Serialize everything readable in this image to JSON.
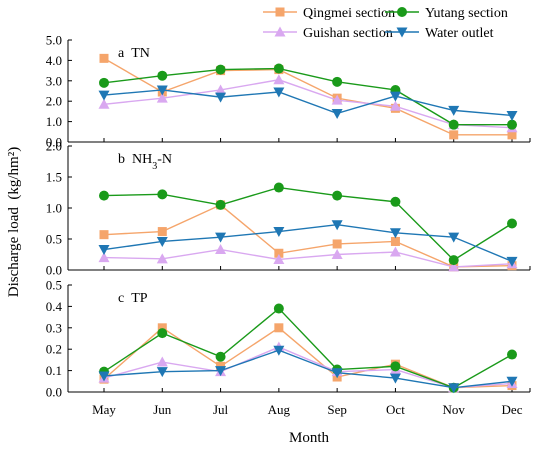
{
  "chart_data": {
    "type": "line",
    "categories": [
      "May",
      "Jun",
      "Jul",
      "Aug",
      "Sep",
      "Oct",
      "Nov",
      "Dec"
    ],
    "xlabel": "Month",
    "ylabel": "Discharge load  (kg/hm²)",
    "legend": {
      "placement": "top-right",
      "entries": [
        "Qingmei section",
        "Yutang section",
        "Guishan section",
        "Water outlet"
      ]
    },
    "series_styles": [
      {
        "name": "Qingmei section",
        "color": "#f5a56b",
        "marker": "square"
      },
      {
        "name": "Yutang section",
        "color": "#1a9a1a",
        "marker": "circle"
      },
      {
        "name": "Guishan section",
        "color": "#d9a8f0",
        "marker": "triangle-up"
      },
      {
        "name": "Water outlet",
        "color": "#1f77b4",
        "marker": "triangle-down"
      }
    ],
    "panels": [
      {
        "label_prefix": "a",
        "label_main": "TN",
        "label_sub": "",
        "label_tail": "",
        "ylim": [
          0,
          5
        ],
        "yticks": [
          "0.0",
          "1.0",
          "2.0",
          "3.0",
          "4.0",
          "5.0"
        ],
        "series": [
          {
            "name": "Qingmei section",
            "values": [
              4.1,
              2.45,
              3.5,
              3.55,
              2.15,
              1.65,
              0.35,
              0.35
            ]
          },
          {
            "name": "Yutang section",
            "values": [
              2.9,
              3.25,
              3.55,
              3.6,
              2.95,
              2.55,
              0.85,
              0.85
            ]
          },
          {
            "name": "Guishan section",
            "values": [
              1.85,
              2.15,
              2.55,
              3.05,
              2.05,
              1.75,
              0.85,
              0.7
            ]
          },
          {
            "name": "Water outlet",
            "values": [
              2.3,
              2.55,
              2.2,
              2.45,
              1.4,
              2.25,
              1.55,
              1.3
            ]
          }
        ]
      },
      {
        "label_prefix": "b",
        "label_main": "NH",
        "label_sub": "3",
        "label_tail": "-N",
        "ylim": [
          0,
          2
        ],
        "yticks": [
          "0.0",
          "0.5",
          "1.0",
          "1.5",
          "2.0"
        ],
        "series": [
          {
            "name": "Qingmei section",
            "values": [
              0.57,
              0.62,
              1.05,
              0.27,
              0.42,
              0.46,
              0.05,
              0.07
            ]
          },
          {
            "name": "Yutang section",
            "values": [
              1.2,
              1.22,
              1.05,
              1.33,
              1.2,
              1.1,
              0.16,
              0.75
            ]
          },
          {
            "name": "Guishan section",
            "values": [
              0.2,
              0.18,
              0.33,
              0.17,
              0.25,
              0.29,
              0.05,
              0.1
            ]
          },
          {
            "name": "Water outlet",
            "values": [
              0.33,
              0.46,
              0.53,
              0.62,
              0.73,
              0.6,
              0.53,
              0.14
            ]
          }
        ]
      },
      {
        "label_prefix": "c",
        "label_main": "TP",
        "label_sub": "",
        "label_tail": "",
        "ylim": [
          0,
          0.5
        ],
        "yticks": [
          "0.0",
          "0.1",
          "0.2",
          "0.3",
          "0.4",
          "0.5"
        ],
        "series": [
          {
            "name": "Qingmei section",
            "values": [
              0.06,
              0.3,
              0.12,
              0.3,
              0.07,
              0.13,
              0.02,
              0.03
            ]
          },
          {
            "name": "Yutang section",
            "values": [
              0.095,
              0.275,
              0.165,
              0.39,
              0.105,
              0.12,
              0.02,
              0.175
            ]
          },
          {
            "name": "Guishan section",
            "values": [
              0.065,
              0.14,
              0.095,
              0.21,
              0.095,
              0.105,
              0.02,
              0.04
            ]
          },
          {
            "name": "Water outlet",
            "values": [
              0.075,
              0.095,
              0.1,
              0.195,
              0.09,
              0.065,
              0.02,
              0.05
            ]
          }
        ]
      }
    ]
  }
}
